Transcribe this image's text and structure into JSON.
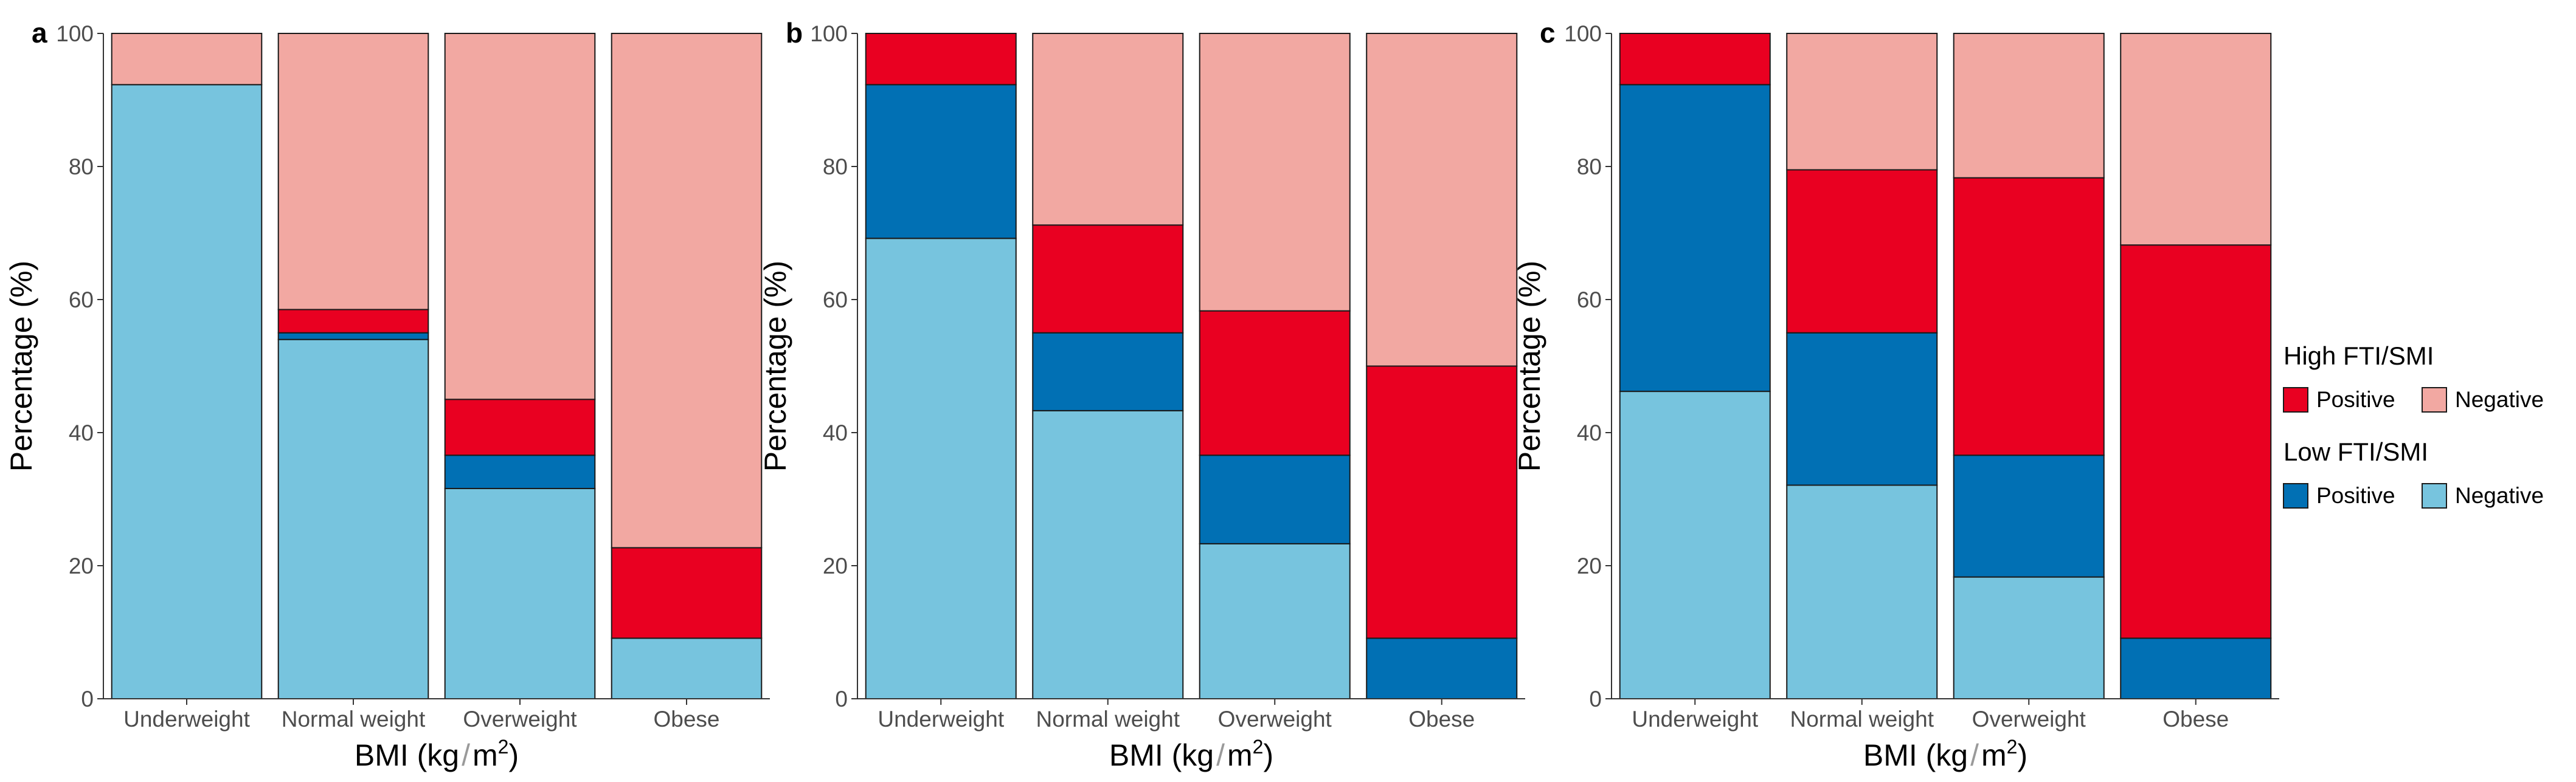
{
  "chart_data": [
    {
      "panel": "a",
      "type": "bar",
      "stacked": true,
      "categories": [
        "Underweight",
        "Normal weight",
        "Overweight",
        "Obese"
      ],
      "series": [
        {
          "key": "low_neg",
          "values": [
            92.3,
            54.0,
            31.6,
            9.1
          ]
        },
        {
          "key": "low_pos",
          "values": [
            0.0,
            1.0,
            5.0,
            0.0
          ]
        },
        {
          "key": "high_pos",
          "values": [
            0.0,
            3.5,
            8.4,
            13.6
          ]
        },
        {
          "key": "high_neg",
          "values": [
            7.7,
            41.5,
            55.0,
            77.3
          ]
        }
      ],
      "xlabel_main": "BMI (kg",
      "xlabel_mid": "m",
      "xlabel_sup": "2",
      "xlabel_end": ")",
      "ylabel": "Percentage (%)",
      "ylim": [
        0,
        100
      ],
      "yticks": [
        "0",
        "20",
        "40",
        "60",
        "80",
        "100"
      ]
    },
    {
      "panel": "b",
      "type": "bar",
      "stacked": true,
      "categories": [
        "Underweight",
        "Normal weight",
        "Overweight",
        "Obese"
      ],
      "series": [
        {
          "key": "low_neg",
          "values": [
            69.2,
            43.3,
            23.3,
            0.0
          ]
        },
        {
          "key": "low_pos",
          "values": [
            23.1,
            11.7,
            13.3,
            9.1
          ]
        },
        {
          "key": "high_pos",
          "values": [
            7.7,
            16.2,
            21.7,
            40.9
          ]
        },
        {
          "key": "high_neg",
          "values": [
            0.0,
            28.8,
            41.7,
            50.0
          ]
        }
      ],
      "xlabel_main": "BMI (kg",
      "xlabel_mid": "m",
      "xlabel_sup": "2",
      "xlabel_end": ")",
      "ylabel": "Percentage (%)",
      "ylim": [
        0,
        100
      ],
      "yticks": [
        "0",
        "20",
        "40",
        "60",
        "80",
        "100"
      ]
    },
    {
      "panel": "c",
      "type": "bar",
      "stacked": true,
      "categories": [
        "Underweight",
        "Normal weight",
        "Overweight",
        "Obese"
      ],
      "series": [
        {
          "key": "low_neg",
          "values": [
            46.2,
            32.1,
            18.3,
            0.0
          ]
        },
        {
          "key": "low_pos",
          "values": [
            46.1,
            22.9,
            18.3,
            9.1
          ]
        },
        {
          "key": "high_pos",
          "values": [
            7.7,
            24.5,
            41.7,
            59.1
          ]
        },
        {
          "key": "high_neg",
          "values": [
            0.0,
            20.5,
            21.7,
            31.8
          ]
        }
      ],
      "xlabel_main": "BMI (kg",
      "xlabel_mid": "m",
      "xlabel_sup": "2",
      "xlabel_end": ")",
      "ylabel": "Percentage (%)",
      "ylim": [
        0,
        100
      ],
      "yticks": [
        "0",
        "20",
        "40",
        "60",
        "80",
        "100"
      ]
    }
  ],
  "colors": {
    "low_neg": "#77c4de",
    "low_pos": "#0170b4",
    "high_pos": "#e90021",
    "high_neg": "#f2a8a2"
  },
  "legend": {
    "placement": "right",
    "groups": [
      {
        "title": "High FTI/SMI",
        "items": [
          {
            "key": "high_pos",
            "label": "Positive"
          },
          {
            "key": "high_neg",
            "label": "Negative"
          }
        ]
      },
      {
        "title": "Low FTI/SMI",
        "items": [
          {
            "key": "low_pos",
            "label": "Positive"
          },
          {
            "key": "low_neg",
            "label": "Negative"
          }
        ]
      }
    ]
  }
}
